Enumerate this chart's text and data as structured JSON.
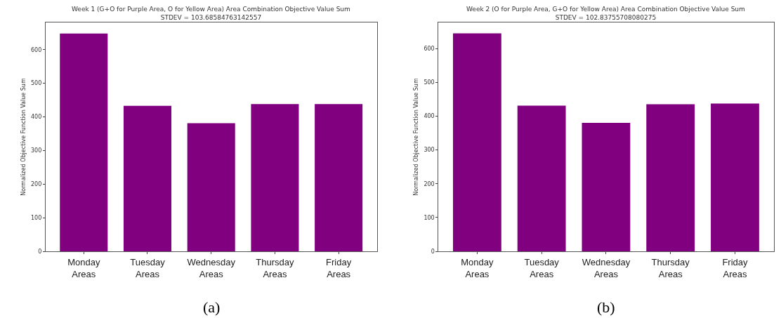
{
  "chart_data": [
    {
      "type": "bar",
      "title": "Week 1 (G+O for Purple Area, O for Yellow Area) Area Combination Objective Value Sum\nSTDEV = 103.68584763142557",
      "ylabel": "Normalized Objective Function Value Sum",
      "categories": [
        "Monday\nAreas",
        "Tuesday\nAreas",
        "Wednesday\nAreas",
        "Thursday\nAreas",
        "Friday\nAreas"
      ],
      "values": [
        648,
        433,
        381,
        438,
        438
      ],
      "color": "#800080",
      "ylim": [
        0,
        681
      ],
      "yticks": [
        0,
        100,
        200,
        300,
        400,
        500,
        600
      ],
      "annotations": [
        "(a)"
      ]
    },
    {
      "type": "bar",
      "title": "Week 2 (O for Purple Area, G+O for Yellow Area) Area Combination Objective Value Sum\nSTDEV = 102.83755708080275",
      "ylabel": "Normalized Objective Function Value Sum",
      "categories": [
        "Monday\nAreas",
        "Tuesday\nAreas",
        "Wednesday\nAreas",
        "Thursday\nAreas",
        "Friday\nAreas"
      ],
      "values": [
        645,
        431,
        380,
        435,
        437
      ],
      "color": "#800080",
      "ylim": [
        0,
        677
      ],
      "yticks": [
        0,
        100,
        200,
        300,
        400,
        500,
        600
      ],
      "annotations": [
        "(b)"
      ]
    }
  ]
}
